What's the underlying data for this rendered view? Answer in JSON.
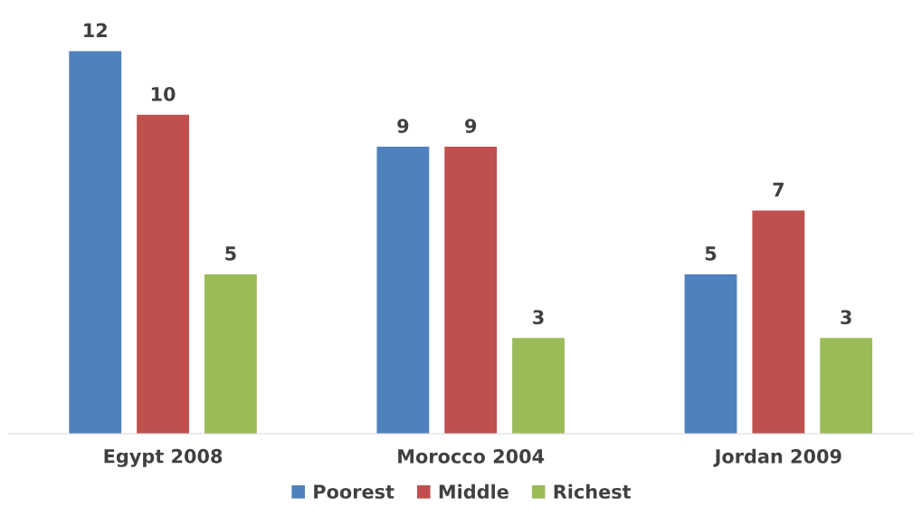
{
  "chart_data": {
    "type": "bar",
    "categories": [
      "Egypt 2008",
      "Morocco 2004",
      "Jordan 2009"
    ],
    "series": [
      {
        "name": "Poorest",
        "color": "#4f81bd",
        "values": [
          12,
          9,
          5
        ]
      },
      {
        "name": "Middle",
        "color": "#c0504d",
        "values": [
          10,
          9,
          7
        ]
      },
      {
        "name": "Richest",
        "color": "#9bbb59",
        "values": [
          5,
          3,
          3
        ]
      }
    ],
    "data_labels": true,
    "legend": "bottom",
    "grid": false
  }
}
